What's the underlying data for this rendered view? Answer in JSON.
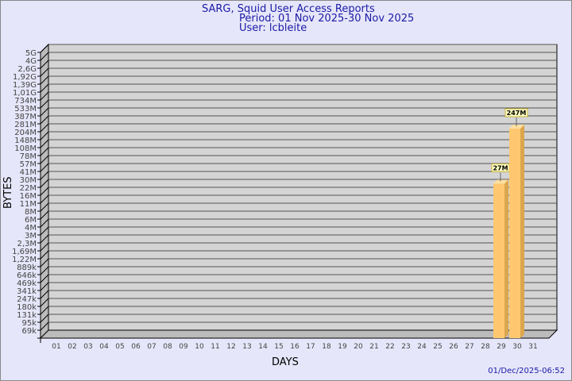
{
  "title": {
    "line1": "SARG, Squid User Access Reports",
    "line2": "Period: 01 Nov 2025-30 Nov 2025",
    "line3": "User: lcbleite"
  },
  "footer": {
    "timestamp": "01/Dec/2025-06:52"
  },
  "colors": {
    "background": "#e6e6fa",
    "plot": "#d4d4d4",
    "bar": "#ffc870",
    "bar_side": "#dca64e",
    "title": "#1a1aa6",
    "label_box": "#ffffc0"
  },
  "chart_data": {
    "type": "bar",
    "title": "SARG, Squid User Access Reports",
    "xlabel": "DAYS",
    "ylabel": "BYTES",
    "yscale": "log",
    "grid": true,
    "y_ticks": [
      {
        "label": "5G",
        "value": 5000000000.0
      },
      {
        "label": "4G",
        "value": 4000000000.0
      },
      {
        "label": "2,6G",
        "value": 2600000000.0
      },
      {
        "label": "1,92G",
        "value": 1920000000.0
      },
      {
        "label": "1,39G",
        "value": 1390000000.0
      },
      {
        "label": "1,01G",
        "value": 1010000000.0
      },
      {
        "label": "734M",
        "value": 734000000.0
      },
      {
        "label": "533M",
        "value": 533000000.0
      },
      {
        "label": "387M",
        "value": 387000000.0
      },
      {
        "label": "281M",
        "value": 281000000.0
      },
      {
        "label": "204M",
        "value": 204000000.0
      },
      {
        "label": "148M",
        "value": 148000000.0
      },
      {
        "label": "108M",
        "value": 108000000.0
      },
      {
        "label": "78M",
        "value": 78000000.0
      },
      {
        "label": "57M",
        "value": 57000000.0
      },
      {
        "label": "41M",
        "value": 41000000.0
      },
      {
        "label": "30M",
        "value": 30000000.0
      },
      {
        "label": "22M",
        "value": 22000000.0
      },
      {
        "label": "16M",
        "value": 16000000.0
      },
      {
        "label": "11M",
        "value": 11000000.0
      },
      {
        "label": "8M",
        "value": 8000000.0
      },
      {
        "label": "6M",
        "value": 6000000.0
      },
      {
        "label": "4M",
        "value": 4000000.0
      },
      {
        "label": "3M",
        "value": 3000000.0
      },
      {
        "label": "2,3M",
        "value": 2300000.0
      },
      {
        "label": "1,69M",
        "value": 1690000.0
      },
      {
        "label": "1,22M",
        "value": 1220000.0
      },
      {
        "label": "889k",
        "value": 889000.0
      },
      {
        "label": "646k",
        "value": 646000.0
      },
      {
        "label": "469k",
        "value": 469000.0
      },
      {
        "label": "341k",
        "value": 341000.0
      },
      {
        "label": "247k",
        "value": 247000.0
      },
      {
        "label": "180k",
        "value": 180000.0
      },
      {
        "label": "131k",
        "value": 131000.0
      },
      {
        "label": "95k",
        "value": 95000.0
      },
      {
        "label": "69k",
        "value": 69000.0
      }
    ],
    "categories": [
      "01",
      "02",
      "03",
      "04",
      "05",
      "06",
      "07",
      "08",
      "09",
      "10",
      "11",
      "12",
      "13",
      "14",
      "15",
      "16",
      "17",
      "18",
      "19",
      "20",
      "21",
      "22",
      "23",
      "24",
      "25",
      "26",
      "27",
      "28",
      "29",
      "30",
      "31"
    ],
    "bars": [
      {
        "day": "29",
        "value": 27000000,
        "label": "27M"
      },
      {
        "day": "30",
        "value": 247000000,
        "label": "247M"
      }
    ]
  }
}
